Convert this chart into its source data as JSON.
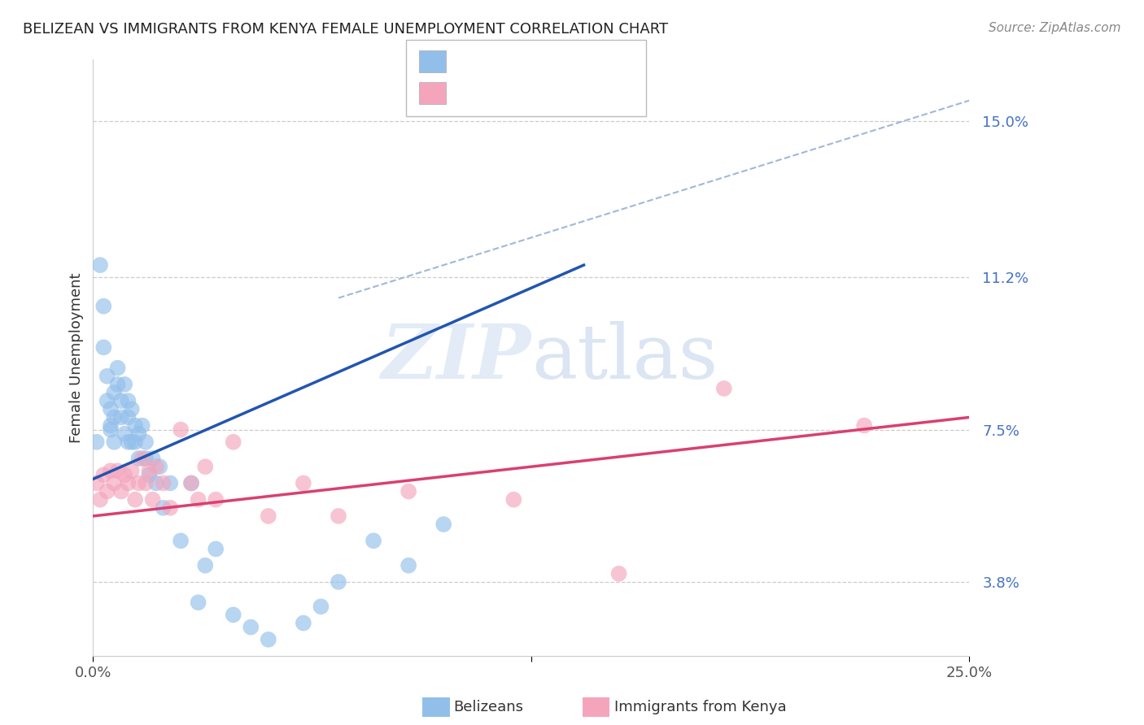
{
  "title": "BELIZEAN VS IMMIGRANTS FROM KENYA FEMALE UNEMPLOYMENT CORRELATION CHART",
  "source": "Source: ZipAtlas.com",
  "ylabel": "Female Unemployment",
  "xlim": [
    0.0,
    0.25
  ],
  "ylim": [
    0.02,
    0.165
  ],
  "yticks": [
    0.038,
    0.075,
    0.112,
    0.15
  ],
  "ytick_labels": [
    "3.8%",
    "7.5%",
    "11.2%",
    "15.0%"
  ],
  "belizean_color": "#92bfea",
  "kenya_color": "#f4a5bc",
  "belizean_line_color": "#2255b0",
  "kenya_line_color": "#d94070",
  "dashed_line_color": "#a0b8d8",
  "belizean_x": [
    0.001,
    0.002,
    0.003,
    0.003,
    0.004,
    0.004,
    0.005,
    0.005,
    0.005,
    0.006,
    0.006,
    0.006,
    0.007,
    0.007,
    0.008,
    0.008,
    0.009,
    0.009,
    0.01,
    0.01,
    0.01,
    0.011,
    0.011,
    0.012,
    0.012,
    0.013,
    0.013,
    0.014,
    0.015,
    0.015,
    0.016,
    0.017,
    0.018,
    0.019,
    0.02,
    0.022,
    0.025,
    0.028,
    0.03,
    0.032,
    0.035,
    0.04,
    0.045,
    0.05,
    0.06,
    0.065,
    0.07,
    0.08,
    0.09,
    0.1
  ],
  "belizean_y": [
    0.072,
    0.115,
    0.105,
    0.095,
    0.088,
    0.082,
    0.076,
    0.08,
    0.075,
    0.084,
    0.078,
    0.072,
    0.09,
    0.086,
    0.082,
    0.078,
    0.086,
    0.074,
    0.082,
    0.078,
    0.072,
    0.08,
    0.072,
    0.076,
    0.072,
    0.074,
    0.068,
    0.076,
    0.072,
    0.068,
    0.064,
    0.068,
    0.062,
    0.066,
    0.056,
    0.062,
    0.048,
    0.062,
    0.033,
    0.042,
    0.046,
    0.03,
    0.027,
    0.024,
    0.028,
    0.032,
    0.038,
    0.048,
    0.042,
    0.052
  ],
  "kenya_x": [
    0.001,
    0.002,
    0.003,
    0.004,
    0.005,
    0.006,
    0.007,
    0.008,
    0.009,
    0.01,
    0.011,
    0.012,
    0.013,
    0.014,
    0.015,
    0.016,
    0.017,
    0.018,
    0.02,
    0.022,
    0.025,
    0.028,
    0.03,
    0.032,
    0.035,
    0.04,
    0.05,
    0.06,
    0.07,
    0.09,
    0.12,
    0.15,
    0.18,
    0.22
  ],
  "kenya_y": [
    0.062,
    0.058,
    0.064,
    0.06,
    0.065,
    0.062,
    0.065,
    0.06,
    0.064,
    0.062,
    0.065,
    0.058,
    0.062,
    0.068,
    0.062,
    0.065,
    0.058,
    0.066,
    0.062,
    0.056,
    0.075,
    0.062,
    0.058,
    0.066,
    0.058,
    0.072,
    0.054,
    0.062,
    0.054,
    0.06,
    0.058,
    0.04,
    0.085,
    0.076
  ],
  "bel_line_x": [
    0.0,
    0.14
  ],
  "bel_line_y": [
    0.063,
    0.115
  ],
  "ken_line_x": [
    0.0,
    0.25
  ],
  "ken_line_y": [
    0.054,
    0.078
  ],
  "dash_line_x": [
    0.07,
    0.25
  ],
  "dash_line_y": [
    0.107,
    0.155
  ]
}
